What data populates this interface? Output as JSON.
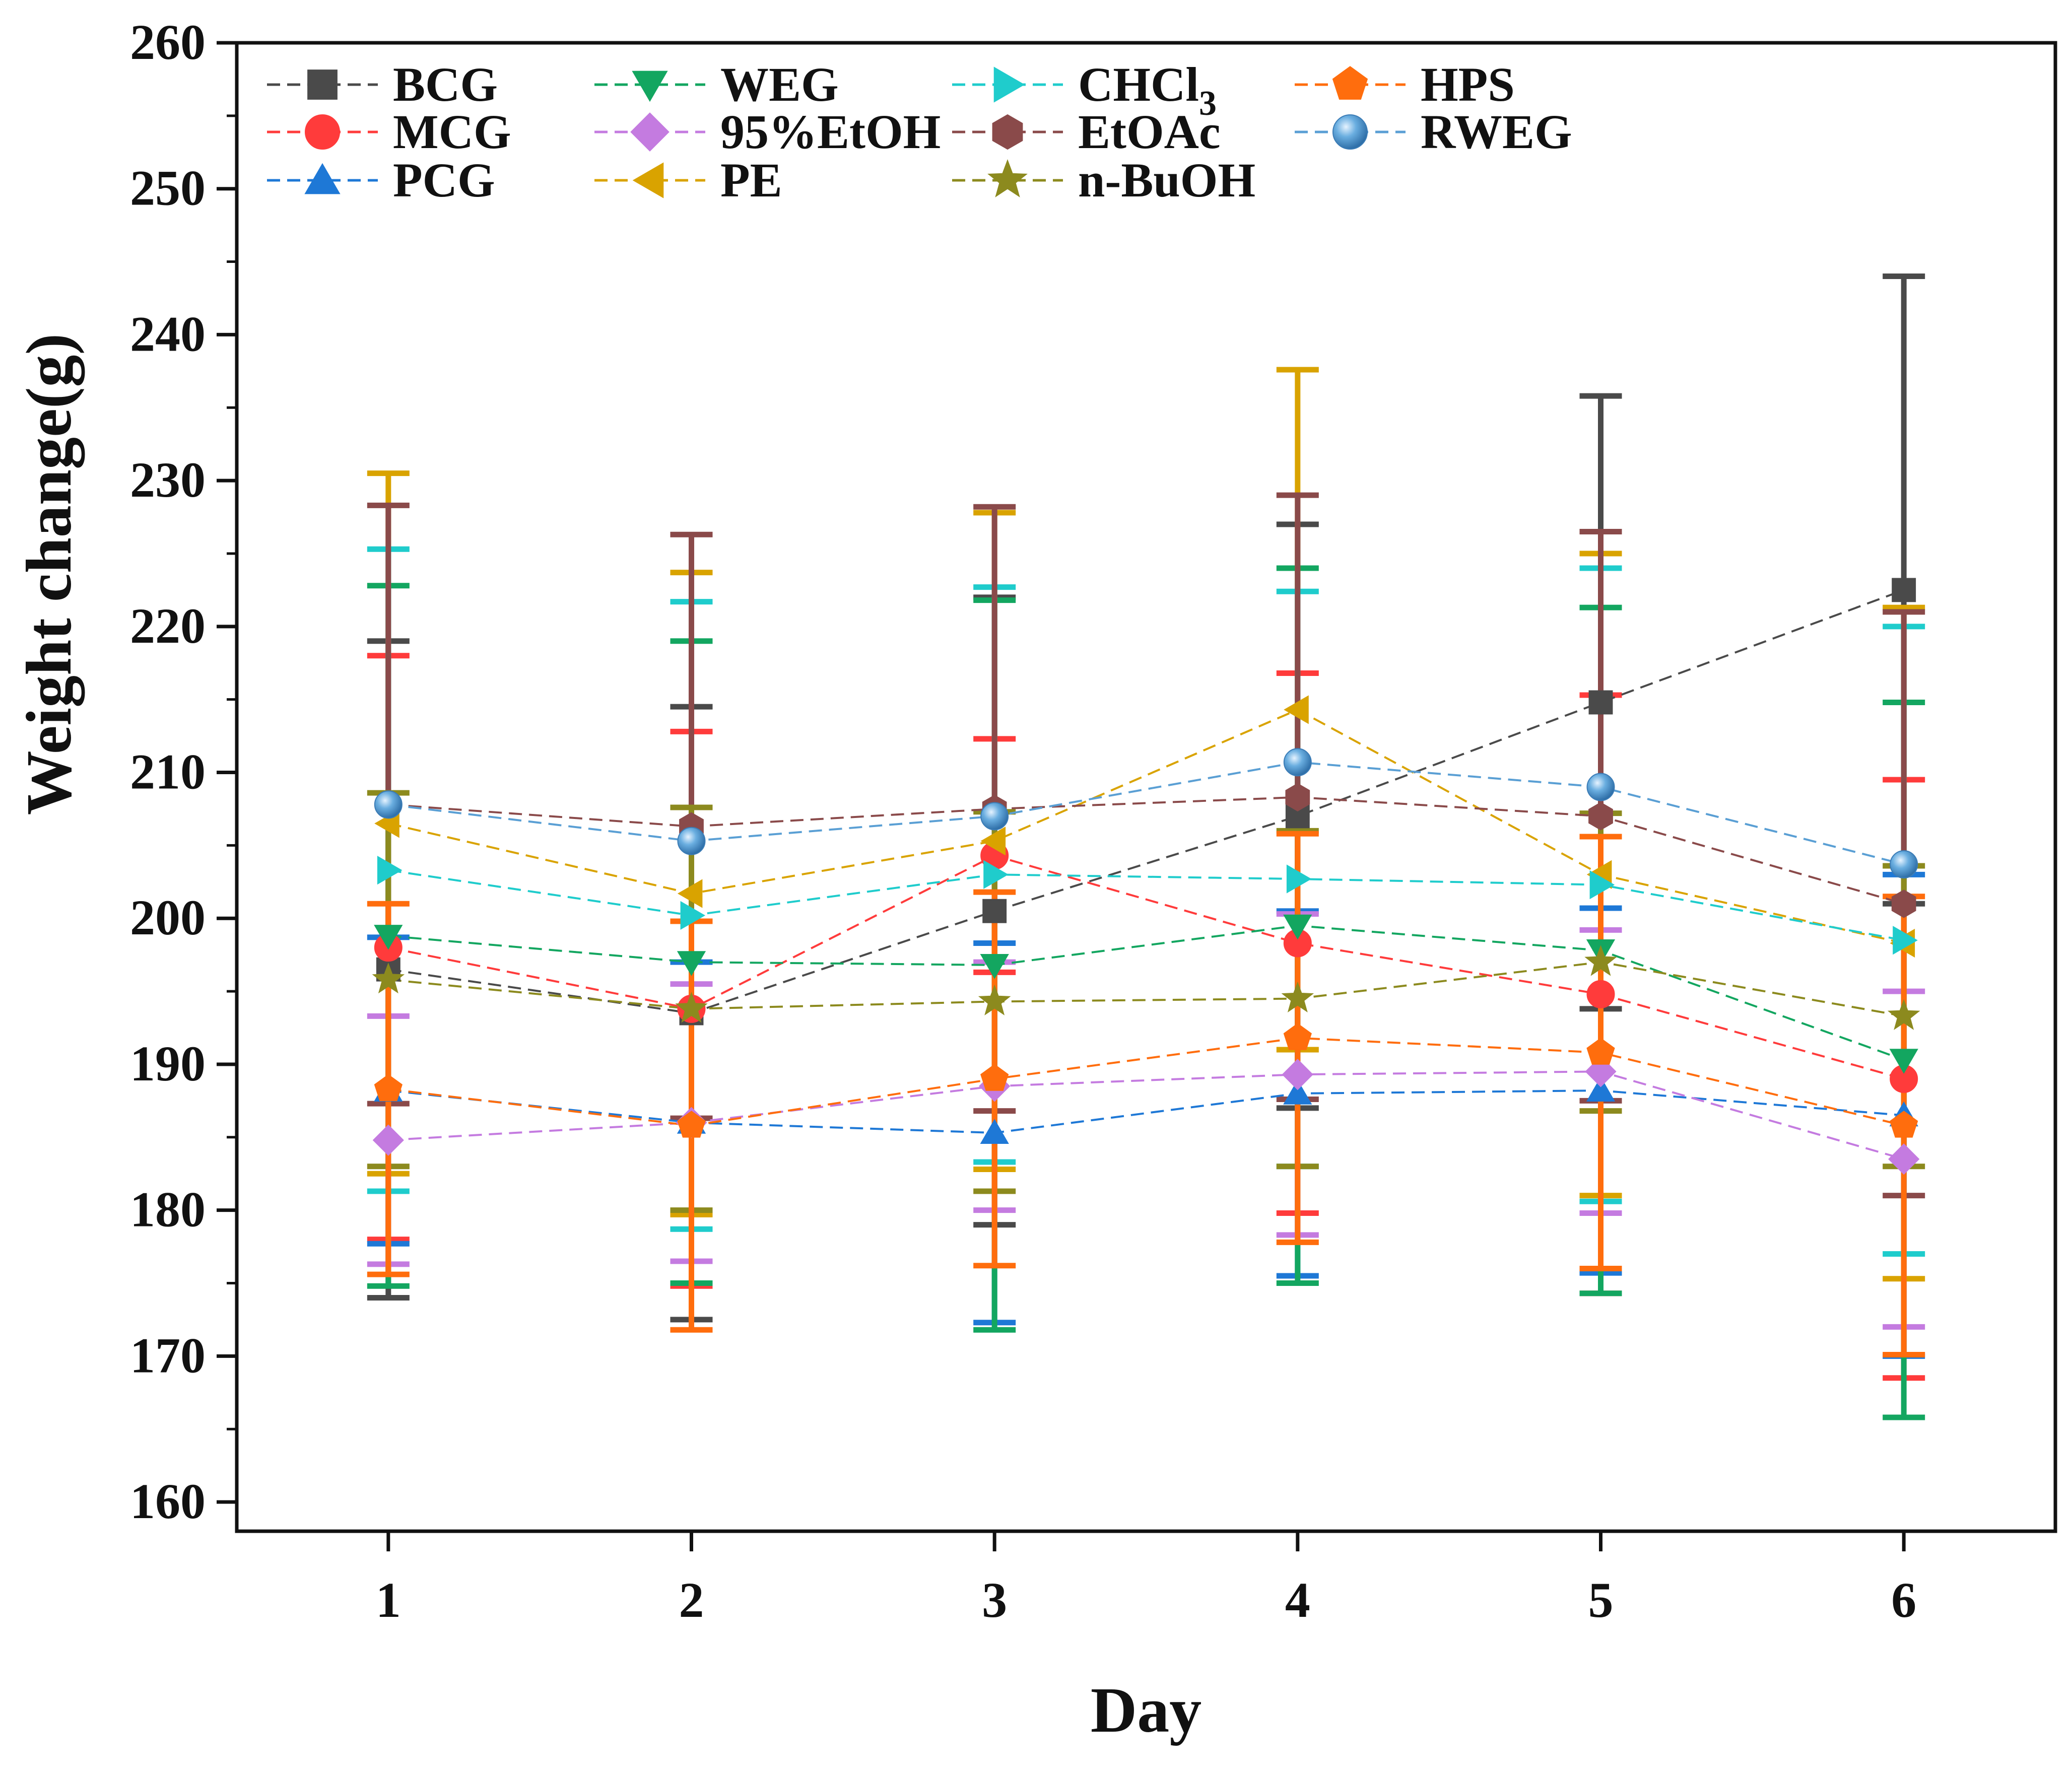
{
  "chart_data": {
    "type": "line",
    "title": "",
    "xlabel": "Day",
    "ylabel": "Weight change(g)",
    "x": [
      1,
      2,
      3,
      4,
      5,
      6
    ],
    "xlim": [
      0.5,
      6.5
    ],
    "ylim": [
      158,
      260
    ],
    "yticks": [
      160,
      170,
      180,
      190,
      200,
      210,
      220,
      230,
      240,
      250,
      260
    ],
    "grid": false,
    "legend_position": "top-left",
    "series": [
      {
        "name": "BCG",
        "color": "#4a4a4a",
        "marker": "square",
        "values": [
          196.5,
          193.5,
          200.5,
          207.0,
          214.8,
          222.5
        ],
        "err": [
          22.5,
          21.0,
          21.5,
          20.0,
          21.0,
          21.5
        ]
      },
      {
        "name": "MCG",
        "color": "#ff3b3b",
        "marker": "circle",
        "values": [
          198.0,
          193.8,
          204.3,
          198.3,
          194.8,
          189.0
        ],
        "err": [
          20.0,
          19.0,
          8.0,
          18.5,
          20.5,
          20.5
        ]
      },
      {
        "name": "PCG",
        "color": "#1e78d6",
        "marker": "triangle-up",
        "values": [
          188.2,
          186.0,
          185.3,
          188.0,
          188.2,
          186.5
        ],
        "err": [
          10.5,
          11.0,
          13.0,
          12.5,
          12.5,
          16.5
        ]
      },
      {
        "name": "WEG",
        "color": "#13a660",
        "marker": "triangle-down",
        "values": [
          198.8,
          197.0,
          196.8,
          199.5,
          197.8,
          190.3
        ],
        "err": [
          24.0,
          22.0,
          25.0,
          24.5,
          23.5,
          24.5
        ]
      },
      {
        "name": "95%EtOH",
        "color": "#c47be0",
        "marker": "diamond",
        "values": [
          184.8,
          186.0,
          188.5,
          189.3,
          189.5,
          183.5
        ],
        "err": [
          8.5,
          9.5,
          8.5,
          11.0,
          9.7,
          11.5
        ]
      },
      {
        "name": "PE",
        "color": "#d9a300",
        "marker": "triangle-left",
        "values": [
          206.5,
          201.7,
          205.3,
          214.3,
          203.0,
          198.3
        ],
        "err": [
          24.0,
          22.0,
          22.5,
          23.3,
          22.0,
          23.0
        ]
      },
      {
        "name": "CHCl",
        "name_sub": "3",
        "color": "#1fcccc",
        "marker": "triangle-right",
        "values": [
          203.3,
          200.2,
          203.0,
          202.7,
          202.3,
          198.5
        ],
        "err": [
          22.0,
          21.5,
          19.7,
          19.7,
          21.7,
          21.5
        ]
      },
      {
        "name": "EtOAc",
        "color": "#8a4a4a",
        "marker": "hexagon",
        "values": [
          207.8,
          206.3,
          207.5,
          208.3,
          207.0,
          201.0
        ],
        "err": [
          20.5,
          20.0,
          20.7,
          20.7,
          19.5,
          20.0
        ]
      },
      {
        "name": "n-BuOH",
        "color": "#8c8a1e",
        "marker": "star",
        "values": [
          195.8,
          193.8,
          194.3,
          194.5,
          197.0,
          193.3
        ],
        "err": [
          12.8,
          13.8,
          13.0,
          11.5,
          10.2,
          10.3
        ]
      },
      {
        "name": "HPS",
        "color": "#ff6d0d",
        "marker": "pentagon",
        "values": [
          188.3,
          185.8,
          189.0,
          191.8,
          190.8,
          185.8
        ],
        "err": [
          12.7,
          14.0,
          12.8,
          14.0,
          14.8,
          15.7
        ]
      },
      {
        "name": "RWEG",
        "color": "#5a9fd4",
        "marker": "ball",
        "values": [
          207.8,
          205.3,
          207.0,
          210.7,
          209.0,
          203.7
        ],
        "err": [
          0,
          0,
          0,
          0,
          0,
          0
        ]
      }
    ]
  }
}
